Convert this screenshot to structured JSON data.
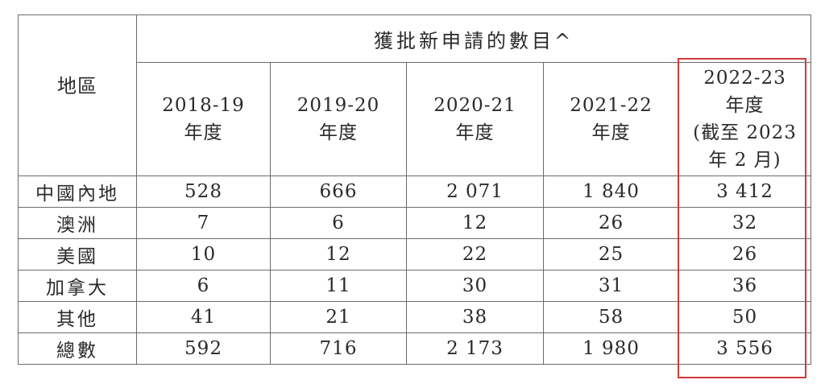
{
  "table": {
    "region_header": "地區",
    "group_header": "獲批新申請的數目^",
    "years": [
      {
        "line1": "2018-19",
        "line2": "年度"
      },
      {
        "line1": "2019-20",
        "line2": "年度"
      },
      {
        "line1": "2020-21",
        "line2": "年度"
      },
      {
        "line1": "2021-22",
        "line2": "年度"
      },
      {
        "line1": "2022-23",
        "line2": "年度",
        "line3": "(截至 2023",
        "line4": "年 2 月)"
      }
    ],
    "rows": [
      {
        "region": "中國內地",
        "values": [
          "528",
          "666",
          "2 071",
          "1 840",
          "3 412"
        ]
      },
      {
        "region": "澳洲",
        "values": [
          "7",
          "6",
          "12",
          "26",
          "32"
        ]
      },
      {
        "region": "美國",
        "values": [
          "10",
          "12",
          "22",
          "25",
          "26"
        ]
      },
      {
        "region": "加拿大",
        "values": [
          "6",
          "11",
          "30",
          "31",
          "36"
        ]
      },
      {
        "region": "其他",
        "values": [
          "41",
          "21",
          "38",
          "58",
          "50"
        ]
      },
      {
        "region": "總數",
        "values": [
          "592",
          "716",
          "2 173",
          "1 980",
          "3 556"
        ]
      }
    ]
  },
  "highlight": {
    "color": "#d23a3a",
    "column": "2022-23"
  }
}
